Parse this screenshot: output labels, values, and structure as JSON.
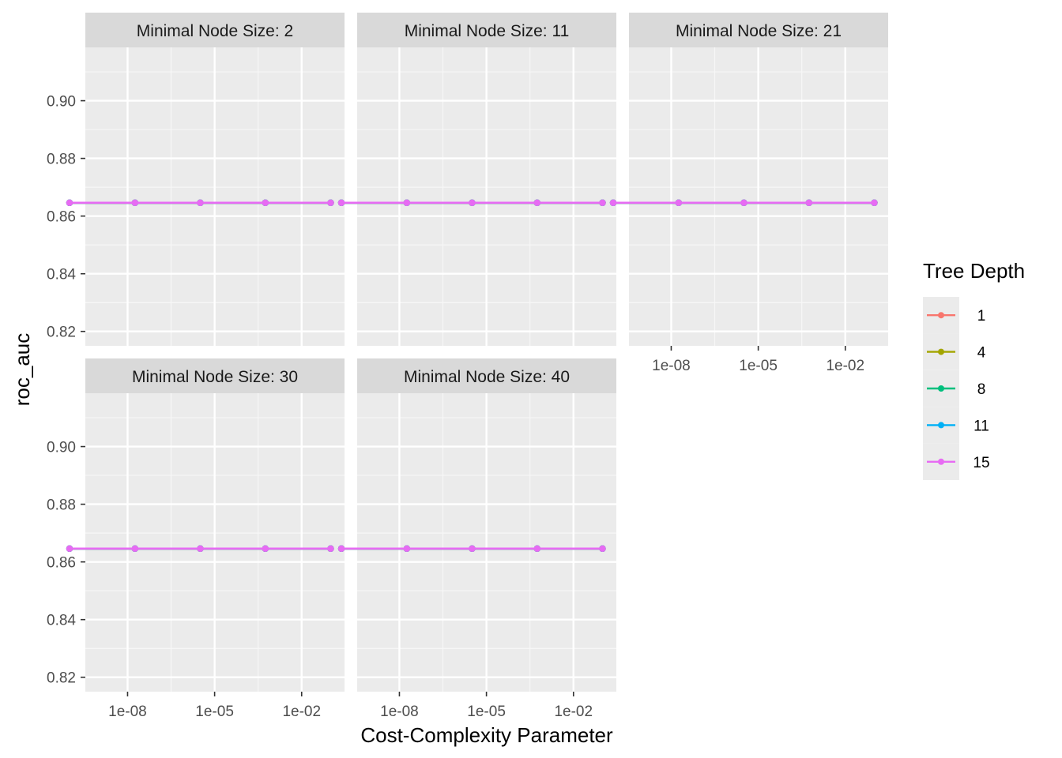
{
  "chart_data": {
    "type": "line",
    "facet_variable": "Minimal Node Size",
    "xlabel": "Cost-Complexity Parameter",
    "ylabel": "roc_auc",
    "x_scale": "log10",
    "x_ticks": [
      1e-08,
      1e-05,
      0.01
    ],
    "x_tick_labels": [
      "1e-08",
      "1e-05",
      "1e-02"
    ],
    "xlim": [
      3.5e-10,
      0.3
    ],
    "y_ticks": [
      0.82,
      0.84,
      0.86,
      0.88,
      0.9
    ],
    "y_tick_labels": [
      "0.82",
      "0.84",
      "0.86",
      "0.88",
      "0.90"
    ],
    "ylim": [
      0.815,
      0.9185
    ],
    "grid": true,
    "legend": {
      "title": "Tree Depth",
      "position": "right",
      "entries": [
        {
          "label": "1",
          "color": "#F8766D"
        },
        {
          "label": "4",
          "color": "#A3A500"
        },
        {
          "label": "8",
          "color": "#00BF7D"
        },
        {
          "label": "11",
          "color": "#00B0F6"
        },
        {
          "label": "15",
          "color": "#E76BF3"
        }
      ]
    },
    "x": [
      1e-10,
      1.8e-08,
      3.2e-06,
      0.00056,
      0.1
    ],
    "facets": [
      {
        "label": "Minimal Node Size: 2",
        "series": [
          {
            "name": "1",
            "values": [
              0.8646,
              0.8646,
              0.8646,
              0.8646,
              0.8646
            ]
          },
          {
            "name": "4",
            "values": [
              0.8646,
              0.8646,
              0.8646,
              0.8646,
              0.8646
            ]
          },
          {
            "name": "8",
            "values": [
              0.8646,
              0.8646,
              0.8646,
              0.8646,
              0.8646
            ]
          },
          {
            "name": "11",
            "values": [
              0.8646,
              0.8646,
              0.8646,
              0.8646,
              0.8646
            ]
          },
          {
            "name": "15",
            "values": [
              0.8646,
              0.8646,
              0.8646,
              0.8646,
              0.8646
            ]
          }
        ]
      },
      {
        "label": "Minimal Node Size: 11",
        "series": [
          {
            "name": "1",
            "values": [
              0.8646,
              0.8646,
              0.8646,
              0.8646,
              0.8646
            ]
          },
          {
            "name": "4",
            "values": [
              0.8646,
              0.8646,
              0.8646,
              0.8646,
              0.8646
            ]
          },
          {
            "name": "8",
            "values": [
              0.8646,
              0.8646,
              0.8646,
              0.8646,
              0.8646
            ]
          },
          {
            "name": "11",
            "values": [
              0.8646,
              0.8646,
              0.8646,
              0.8646,
              0.8646
            ]
          },
          {
            "name": "15",
            "values": [
              0.8646,
              0.8646,
              0.8646,
              0.8646,
              0.8646
            ]
          }
        ]
      },
      {
        "label": "Minimal Node Size: 21",
        "series": [
          {
            "name": "1",
            "values": [
              0.8646,
              0.8646,
              0.8646,
              0.8646,
              0.8646
            ]
          },
          {
            "name": "4",
            "values": [
              0.8646,
              0.8646,
              0.8646,
              0.8646,
              0.8646
            ]
          },
          {
            "name": "8",
            "values": [
              0.8646,
              0.8646,
              0.8646,
              0.8646,
              0.8646
            ]
          },
          {
            "name": "11",
            "values": [
              0.8646,
              0.8646,
              0.8646,
              0.8646,
              0.8646
            ]
          },
          {
            "name": "15",
            "values": [
              0.8646,
              0.8646,
              0.8646,
              0.8646,
              0.8646
            ]
          }
        ]
      },
      {
        "label": "Minimal Node Size: 30",
        "series": [
          {
            "name": "1",
            "values": [
              0.8646,
              0.8646,
              0.8646,
              0.8646,
              0.8646
            ]
          },
          {
            "name": "4",
            "values": [
              0.8646,
              0.8646,
              0.8646,
              0.8646,
              0.8646
            ]
          },
          {
            "name": "8",
            "values": [
              0.8646,
              0.8646,
              0.8646,
              0.8646,
              0.8646
            ]
          },
          {
            "name": "11",
            "values": [
              0.8646,
              0.8646,
              0.8646,
              0.8646,
              0.8646
            ]
          },
          {
            "name": "15",
            "values": [
              0.8646,
              0.8646,
              0.8646,
              0.8646,
              0.8646
            ]
          }
        ]
      },
      {
        "label": "Minimal Node Size: 40",
        "series": [
          {
            "name": "1",
            "values": [
              0.8646,
              0.8646,
              0.8646,
              0.8646,
              0.8646
            ]
          },
          {
            "name": "4",
            "values": [
              0.8646,
              0.8646,
              0.8646,
              0.8646,
              0.8646
            ]
          },
          {
            "name": "8",
            "values": [
              0.8646,
              0.8646,
              0.8646,
              0.8646,
              0.8646
            ]
          },
          {
            "name": "11",
            "values": [
              0.8646,
              0.8646,
              0.8646,
              0.8646,
              0.8646
            ]
          },
          {
            "name": "15",
            "values": [
              0.8646,
              0.8646,
              0.8646,
              0.8646,
              0.8646
            ]
          }
        ]
      }
    ]
  }
}
